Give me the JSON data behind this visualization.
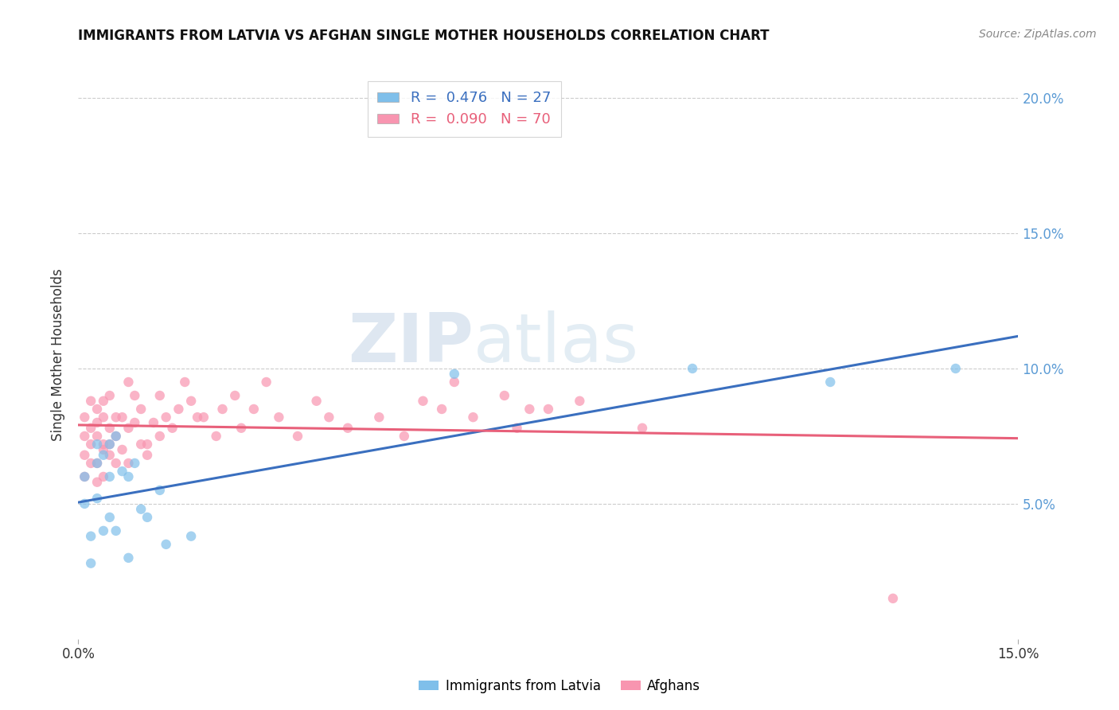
{
  "title": "IMMIGRANTS FROM LATVIA VS AFGHAN SINGLE MOTHER HOUSEHOLDS CORRELATION CHART",
  "source": "Source: ZipAtlas.com",
  "ylabel": "Single Mother Households",
  "xlim": [
    0.0,
    0.15
  ],
  "ylim": [
    0.0,
    0.21
  ],
  "y_ticks": [
    0.05,
    0.1,
    0.15,
    0.2
  ],
  "y_tick_labels": [
    "5.0%",
    "10.0%",
    "15.0%",
    "20.0%"
  ],
  "bottom_legend": [
    "Immigrants from Latvia",
    "Afghans"
  ],
  "latvia_color": "#7fbfea",
  "afghan_color": "#f895b0",
  "latvia_line_color": "#3a6fbf",
  "afghan_line_color": "#e8607a",
  "watermark_zip": "ZIP",
  "watermark_atlas": "atlas",
  "latvia_x": [
    0.001,
    0.001,
    0.002,
    0.002,
    0.003,
    0.003,
    0.003,
    0.004,
    0.004,
    0.005,
    0.005,
    0.005,
    0.006,
    0.006,
    0.007,
    0.008,
    0.008,
    0.009,
    0.01,
    0.011,
    0.013,
    0.014,
    0.018,
    0.06,
    0.098,
    0.12,
    0.14
  ],
  "latvia_y": [
    0.06,
    0.05,
    0.038,
    0.028,
    0.072,
    0.065,
    0.052,
    0.04,
    0.068,
    0.06,
    0.072,
    0.045,
    0.04,
    0.075,
    0.062,
    0.03,
    0.06,
    0.065,
    0.048,
    0.045,
    0.055,
    0.035,
    0.038,
    0.098,
    0.1,
    0.095,
    0.1
  ],
  "afghan_x": [
    0.001,
    0.001,
    0.001,
    0.001,
    0.002,
    0.002,
    0.002,
    0.002,
    0.003,
    0.003,
    0.003,
    0.003,
    0.003,
    0.004,
    0.004,
    0.004,
    0.004,
    0.004,
    0.005,
    0.005,
    0.005,
    0.005,
    0.006,
    0.006,
    0.006,
    0.007,
    0.007,
    0.008,
    0.008,
    0.008,
    0.009,
    0.009,
    0.01,
    0.01,
    0.011,
    0.011,
    0.012,
    0.013,
    0.013,
    0.014,
    0.015,
    0.016,
    0.017,
    0.018,
    0.019,
    0.02,
    0.022,
    0.023,
    0.025,
    0.026,
    0.028,
    0.03,
    0.032,
    0.035,
    0.038,
    0.04,
    0.043,
    0.048,
    0.052,
    0.055,
    0.058,
    0.06,
    0.063,
    0.068,
    0.07,
    0.072,
    0.075,
    0.08,
    0.09,
    0.13
  ],
  "afghan_y": [
    0.068,
    0.075,
    0.082,
    0.06,
    0.072,
    0.078,
    0.065,
    0.088,
    0.075,
    0.08,
    0.085,
    0.065,
    0.058,
    0.07,
    0.06,
    0.088,
    0.072,
    0.082,
    0.072,
    0.068,
    0.09,
    0.078,
    0.075,
    0.065,
    0.082,
    0.082,
    0.07,
    0.095,
    0.078,
    0.065,
    0.08,
    0.09,
    0.085,
    0.072,
    0.072,
    0.068,
    0.08,
    0.09,
    0.075,
    0.082,
    0.078,
    0.085,
    0.095,
    0.088,
    0.082,
    0.082,
    0.075,
    0.085,
    0.09,
    0.078,
    0.085,
    0.095,
    0.082,
    0.075,
    0.088,
    0.082,
    0.078,
    0.082,
    0.075,
    0.088,
    0.085,
    0.095,
    0.082,
    0.09,
    0.078,
    0.085,
    0.085,
    0.088,
    0.078,
    0.015
  ]
}
